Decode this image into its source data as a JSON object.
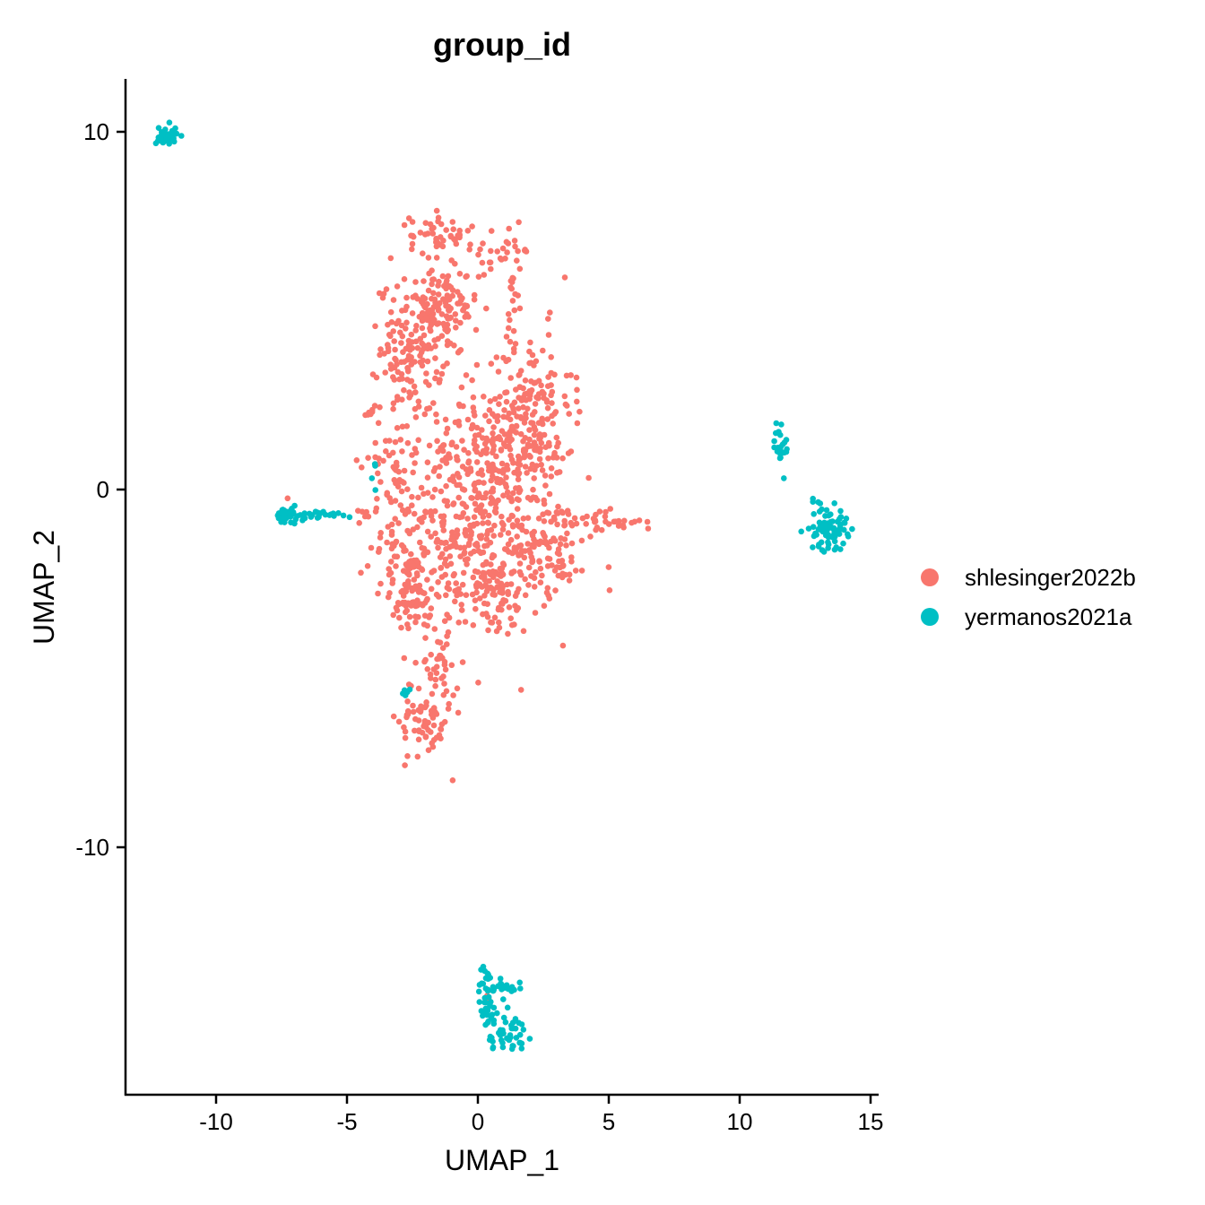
{
  "chart_data": {
    "type": "scatter",
    "title": "group_id",
    "xlabel": "UMAP_1",
    "ylabel": "UMAP_2",
    "xlim": [
      -13.5,
      15.2
    ],
    "ylim": [
      -16.8,
      11.4
    ],
    "x_ticks": [
      -10,
      -5,
      0,
      5,
      10,
      15
    ],
    "y_ticks": [
      -10,
      0,
      10
    ],
    "x_tick_labels": [
      "-10",
      "-5",
      "0",
      "5",
      "10",
      "15"
    ],
    "y_tick_labels": [
      "-10",
      "0",
      "10"
    ],
    "grid": false,
    "legend_position": "right",
    "series": [
      {
        "name": "shlesinger2022b",
        "color": "#F8766D",
        "clusters": [
          {
            "x": 0.0,
            "y": -1.0,
            "sx": 1.8,
            "sy": 1.6,
            "n": 520
          },
          {
            "x": -2.5,
            "y": 4.0,
            "sx": 0.6,
            "sy": 0.9,
            "n": 140
          },
          {
            "x": -1.4,
            "y": 5.0,
            "sx": 0.7,
            "sy": 0.6,
            "n": 110
          },
          {
            "x": 2.0,
            "y": 2.5,
            "sx": 0.8,
            "sy": 1.0,
            "n": 130
          },
          {
            "x": 0.8,
            "y": 1.2,
            "sx": 1.2,
            "sy": 0.8,
            "n": 120
          },
          {
            "x": -2.6,
            "y": -2.8,
            "sx": 0.5,
            "sy": 0.6,
            "n": 80
          },
          {
            "x": 3.0,
            "y": -1.6,
            "sx": 0.6,
            "sy": 0.6,
            "n": 70
          },
          {
            "x": 0.5,
            "y": -2.8,
            "sx": 0.8,
            "sy": 0.5,
            "n": 60
          },
          {
            "x": -1.4,
            "y": 7.1,
            "sx": 0.6,
            "sy": 0.3,
            "n": 50
          },
          {
            "x": 0.8,
            "y": 6.7,
            "sx": 0.7,
            "sy": 0.3,
            "n": 25
          },
          {
            "x": 1.4,
            "y": 5.6,
            "sx": 0.2,
            "sy": 0.8,
            "n": 20
          },
          {
            "x": 4.9,
            "y": -0.9,
            "sx": 0.7,
            "sy": 0.15,
            "n": 30
          },
          {
            "x": -4.1,
            "y": 2.2,
            "sx": 0.1,
            "sy": 0.1,
            "n": 8
          },
          {
            "x": -4.3,
            "y": -0.6,
            "sx": 0.2,
            "sy": 0.1,
            "n": 6
          },
          {
            "x": -3.3,
            "y": 0.4,
            "sx": 0.4,
            "sy": 0.8,
            "n": 40
          },
          {
            "x": -2.0,
            "y": -6.4,
            "sx": 0.5,
            "sy": 0.6,
            "n": 70
          },
          {
            "x": -1.5,
            "y": -5.0,
            "sx": 0.4,
            "sy": 0.5,
            "n": 30
          },
          {
            "x": -7.4,
            "y": -0.7,
            "sx": 0.05,
            "sy": 0.05,
            "n": 3
          },
          {
            "x": 0.35,
            "y": -14.2,
            "sx": 0.04,
            "sy": 0.04,
            "n": 2
          }
        ]
      },
      {
        "name": "yermanos2021a",
        "color": "#00BFC4",
        "clusters": [
          {
            "x": -11.9,
            "y": 9.9,
            "sx": 0.2,
            "sy": 0.15,
            "n": 35
          },
          {
            "x": -7.3,
            "y": -0.75,
            "sx": 0.2,
            "sy": 0.12,
            "n": 40
          },
          {
            "x": -6.0,
            "y": -0.7,
            "sx": 0.6,
            "sy": 0.06,
            "n": 25
          },
          {
            "x": -4.0,
            "y": 0.2,
            "sx": 0.08,
            "sy": 0.3,
            "n": 4
          },
          {
            "x": -2.8,
            "y": -5.7,
            "sx": 0.12,
            "sy": 0.06,
            "n": 5
          },
          {
            "x": 11.6,
            "y": 1.3,
            "sx": 0.15,
            "sy": 0.4,
            "n": 22
          },
          {
            "x": 13.4,
            "y": -1.1,
            "sx": 0.35,
            "sy": 0.3,
            "n": 80
          },
          {
            "x": 12.8,
            "y": -0.3,
            "sx": 0.05,
            "sy": 0.05,
            "n": 2
          },
          {
            "x": 0.35,
            "y": -14.2,
            "sx": 0.15,
            "sy": 0.5,
            "n": 40
          },
          {
            "x": 1.1,
            "y": -15.2,
            "sx": 0.4,
            "sy": 0.25,
            "n": 45
          },
          {
            "x": 0.9,
            "y": -13.9,
            "sx": 0.45,
            "sy": 0.15,
            "n": 20
          }
        ]
      }
    ]
  }
}
